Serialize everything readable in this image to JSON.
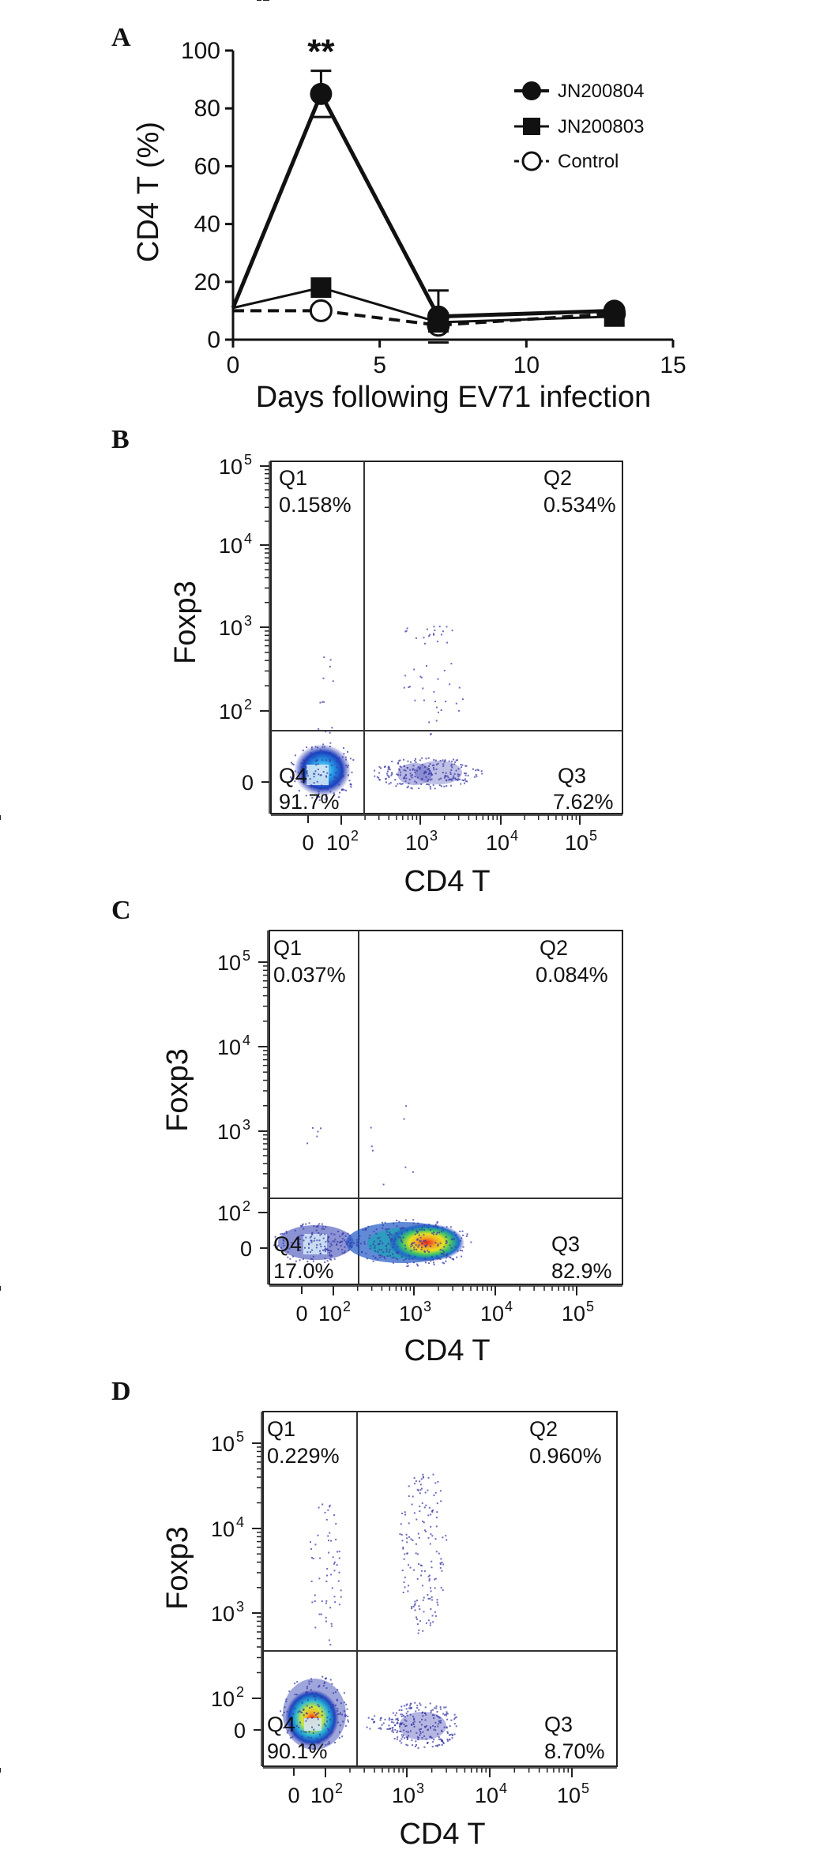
{
  "panels": [
    {
      "letter": "A",
      "type": "line",
      "ylabel": "CD4 T (%)",
      "xlabel": "Days following EV71 infection",
      "xlim": [
        0,
        15
      ],
      "ylim": [
        0,
        100
      ],
      "x_ticks": [
        "0",
        "5",
        "10",
        "15"
      ],
      "y_ticks": [
        "0",
        "20",
        "40",
        "60",
        "80",
        "100"
      ],
      "significance": "**",
      "legend_position": "top-right"
    },
    {
      "letter": "B",
      "type": "scatter",
      "xlabel": "CD4 T",
      "ylabel": "Foxp3",
      "quadrants": {
        "Q1": "0.158%",
        "Q2": "0.534%",
        "Q3": "7.62%",
        "Q4": "91.7%"
      }
    },
    {
      "letter": "C",
      "type": "scatter",
      "xlabel": "CD4 T",
      "ylabel": "Foxp3",
      "quadrants": {
        "Q1": "0.037%",
        "Q2": "0.084%",
        "Q3": "82.9%",
        "Q4": "17.0%"
      }
    },
    {
      "letter": "D",
      "type": "scatter",
      "xlabel": "CD4 T",
      "ylabel": "Foxp3",
      "quadrants": {
        "Q1": "0.229%",
        "Q2": "0.960%",
        "Q3": "8.70%",
        "Q4": "90.1%"
      }
    }
  ],
  "flow_axis_ticks": {
    "x": [
      "0",
      "10",
      "10",
      "10",
      "10"
    ],
    "y": [
      "0",
      "10",
      "10",
      "10",
      "10"
    ],
    "exponents": [
      "2",
      "3",
      "4",
      "5"
    ]
  },
  "quadrant_names": [
    "Q1",
    "Q2",
    "Q3",
    "Q4"
  ],
  "chart_data": [
    {
      "type": "line",
      "title": "",
      "xlabel": "Days following EV71 infection",
      "ylabel": "CD4 T (%)",
      "xlim": [
        0,
        15
      ],
      "ylim": [
        0,
        100
      ],
      "grid": false,
      "legend": "top-right",
      "series": [
        {
          "name": "JN200804",
          "marker": "filled-circle",
          "line": "solid-thick",
          "x": [
            0,
            3,
            7,
            13
          ],
          "y": [
            11,
            85,
            8,
            10
          ],
          "err_up": [
            0,
            8,
            9,
            0
          ]
        },
        {
          "name": "JN200803",
          "marker": "filled-square",
          "line": "solid",
          "x": [
            0,
            3,
            7,
            13
          ],
          "y": [
            11,
            18,
            6,
            8
          ]
        },
        {
          "name": "Control",
          "marker": "open-circle",
          "line": "dashed",
          "x": [
            0,
            3,
            7,
            13
          ],
          "y": [
            10,
            10,
            5,
            9
          ]
        }
      ],
      "annotations": [
        {
          "text": "**",
          "x": 3
        }
      ]
    },
    {
      "type": "scatter",
      "xlabel": "CD4 T",
      "ylabel": "Foxp3",
      "quadrants": {
        "Q1": 0.158,
        "Q2": 0.534,
        "Q3": 7.62,
        "Q4": 91.7
      }
    },
    {
      "type": "scatter",
      "xlabel": "CD4 T",
      "ylabel": "Foxp3",
      "quadrants": {
        "Q1": 0.037,
        "Q2": 0.084,
        "Q3": 82.9,
        "Q4": 17.0
      }
    },
    {
      "type": "scatter",
      "xlabel": "CD4 T",
      "ylabel": "Foxp3",
      "quadrants": {
        "Q1": 0.229,
        "Q2": 0.96,
        "Q3": 8.7,
        "Q4": 90.1
      }
    }
  ]
}
